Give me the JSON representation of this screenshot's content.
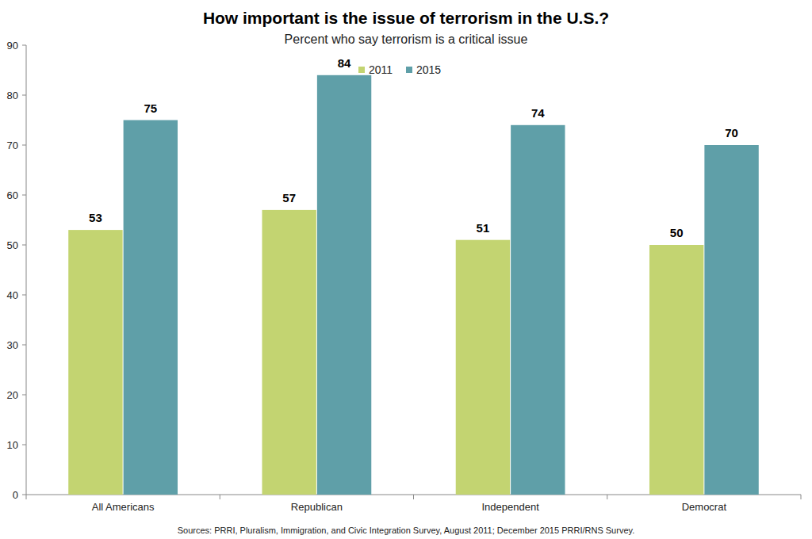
{
  "chart_data": {
    "type": "bar",
    "title": "How important is the issue of terrorism in the U.S.?",
    "subtitle": "Percent who say terrorism is a critical issue",
    "categories": [
      "All Americans",
      "Republican",
      "Independent",
      "Democrat"
    ],
    "series": [
      {
        "name": "2011",
        "color": "#c3d471",
        "values": [
          53,
          57,
          51,
          50
        ]
      },
      {
        "name": "2015",
        "color": "#5f9fa8",
        "values": [
          75,
          84,
          74,
          70
        ]
      }
    ],
    "ylim": [
      0,
      90
    ],
    "yticks": [
      0,
      10,
      20,
      30,
      40,
      50,
      60,
      70,
      80,
      90
    ],
    "grid": false,
    "legend": "top",
    "data_labels": true,
    "source": "Sources: PRRI, Pluralism, Immigration, and Civic Integration Survey, August 2011; December 2015 PRRI/RNS Survey."
  }
}
